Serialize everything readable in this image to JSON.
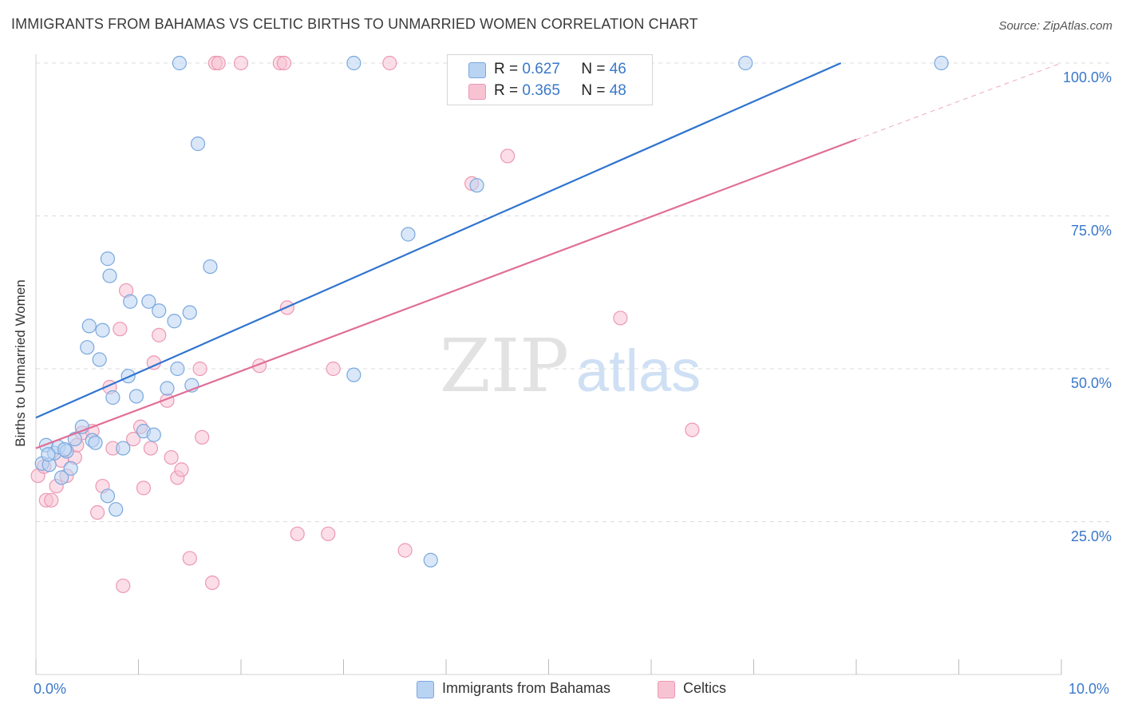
{
  "title": "IMMIGRANTS FROM BAHAMAS VS CELTIC BIRTHS TO UNMARRIED WOMEN CORRELATION CHART",
  "source": "Source: ZipAtlas.com",
  "watermark": {
    "zip": "ZIP",
    "atlas": "atlas"
  },
  "colors": {
    "blue_fill": "#b9d3f3",
    "blue_stroke": "#7aa8de",
    "blue_line": "#2f74cf",
    "pink_fill": "#f7c3d3",
    "pink_stroke": "#ec98b3",
    "pink_line": "#e06f98",
    "grid": "#dcdcdc",
    "axis_text": "#3a78c9"
  },
  "legend": {
    "rows": [
      {
        "r_label": "R =",
        "r_value": "0.627",
        "n_label": "N =",
        "n_value": "46"
      },
      {
        "r_label": "R =",
        "r_value": "0.365",
        "n_label": "N =",
        "n_value": "48"
      }
    ]
  },
  "bottom_legend": [
    "Immigrants from Bahamas",
    "Celtics"
  ],
  "chart_data": {
    "type": "scatter",
    "title": "IMMIGRANTS FROM BAHAMAS VS CELTIC BIRTHS TO UNMARRIED WOMEN CORRELATION CHART",
    "xlabel": "",
    "ylabel": "Births to Unmarried Women",
    "xlim": [
      0,
      10
    ],
    "ylim": [
      0,
      100
    ],
    "x_tick_labels": [
      "0.0%",
      "10.0%"
    ],
    "y_ticks": [
      25,
      50,
      75,
      100
    ],
    "y_tick_labels": [
      "25.0%",
      "50.0%",
      "75.0%",
      "100.0%"
    ],
    "series": [
      {
        "name": "Immigrants from Bahamas",
        "r": 0.627,
        "n": 46,
        "trend": {
          "x0": 0,
          "y0": 42.0,
          "x1": 7.85,
          "y1": 100
        },
        "points": [
          [
            0.06,
            34.5
          ],
          [
            0.1,
            37.5
          ],
          [
            0.13,
            34.3
          ],
          [
            0.18,
            36.2
          ],
          [
            0.22,
            37.2
          ],
          [
            0.25,
            32.2
          ],
          [
            0.3,
            36.5
          ],
          [
            0.34,
            33.7
          ],
          [
            0.38,
            38.5
          ],
          [
            0.45,
            40.5
          ],
          [
            0.55,
            38.3
          ],
          [
            0.62,
            51.5
          ],
          [
            0.65,
            56.3
          ],
          [
            0.7,
            68.0
          ],
          [
            0.5,
            53.5
          ],
          [
            0.52,
            57.0
          ],
          [
            0.72,
            65.2
          ],
          [
            0.75,
            45.3
          ],
          [
            0.85,
            37.0
          ],
          [
            0.9,
            48.8
          ],
          [
            0.92,
            61.0
          ],
          [
            0.98,
            45.5
          ],
          [
            1.05,
            39.8
          ],
          [
            1.1,
            61.0
          ],
          [
            1.15,
            39.2
          ],
          [
            1.2,
            59.5
          ],
          [
            1.28,
            46.8
          ],
          [
            1.35,
            57.8
          ],
          [
            1.38,
            50.0
          ],
          [
            1.4,
            100
          ],
          [
            1.5,
            59.2
          ],
          [
            1.52,
            47.3
          ],
          [
            1.58,
            86.8
          ],
          [
            1.7,
            66.7
          ],
          [
            0.7,
            29.2
          ],
          [
            0.78,
            27.0
          ],
          [
            0.58,
            37.9
          ],
          [
            3.1,
            100
          ],
          [
            3.1,
            49.0
          ],
          [
            3.63,
            72.0
          ],
          [
            3.85,
            18.7
          ],
          [
            4.3,
            80.0
          ],
          [
            6.92,
            100
          ],
          [
            8.83,
            100
          ],
          [
            0.12,
            36.0
          ],
          [
            0.28,
            36.8
          ]
        ]
      },
      {
        "name": "Celtics",
        "r": 0.365,
        "n": 48,
        "trend": {
          "x0": 0,
          "y0": 37.0,
          "x1": 8.0,
          "y1": 87.5,
          "dash_to": {
            "x": 10,
            "y": 100
          }
        },
        "points": [
          [
            0.02,
            32.5
          ],
          [
            0.1,
            28.5
          ],
          [
            0.15,
            28.5
          ],
          [
            0.2,
            30.8
          ],
          [
            0.25,
            35.0
          ],
          [
            0.3,
            32.5
          ],
          [
            0.38,
            35.5
          ],
          [
            0.4,
            37.5
          ],
          [
            0.45,
            39.5
          ],
          [
            0.55,
            39.8
          ],
          [
            0.6,
            26.5
          ],
          [
            0.65,
            30.8
          ],
          [
            0.72,
            47.0
          ],
          [
            0.75,
            37.0
          ],
          [
            0.82,
            56.5
          ],
          [
            0.85,
            14.5
          ],
          [
            0.88,
            62.8
          ],
          [
            0.95,
            38.5
          ],
          [
            1.02,
            40.5
          ],
          [
            1.05,
            30.5
          ],
          [
            1.12,
            37.0
          ],
          [
            1.15,
            51.0
          ],
          [
            1.2,
            55.5
          ],
          [
            1.28,
            44.8
          ],
          [
            1.32,
            35.5
          ],
          [
            1.38,
            32.2
          ],
          [
            1.42,
            33.5
          ],
          [
            1.5,
            19.0
          ],
          [
            1.6,
            50.0
          ],
          [
            1.62,
            38.8
          ],
          [
            1.72,
            15.0
          ],
          [
            1.75,
            100
          ],
          [
            1.78,
            100
          ],
          [
            2.0,
            100
          ],
          [
            2.18,
            50.5
          ],
          [
            2.38,
            100
          ],
          [
            2.42,
            100
          ],
          [
            2.45,
            60.0
          ],
          [
            2.55,
            23.0
          ],
          [
            2.85,
            23.0
          ],
          [
            2.9,
            50.0
          ],
          [
            3.45,
            100
          ],
          [
            3.6,
            20.3
          ],
          [
            4.25,
            80.3
          ],
          [
            4.6,
            84.8
          ],
          [
            5.7,
            58.3
          ],
          [
            6.4,
            40.0
          ],
          [
            0.08,
            34.0
          ]
        ]
      }
    ]
  }
}
